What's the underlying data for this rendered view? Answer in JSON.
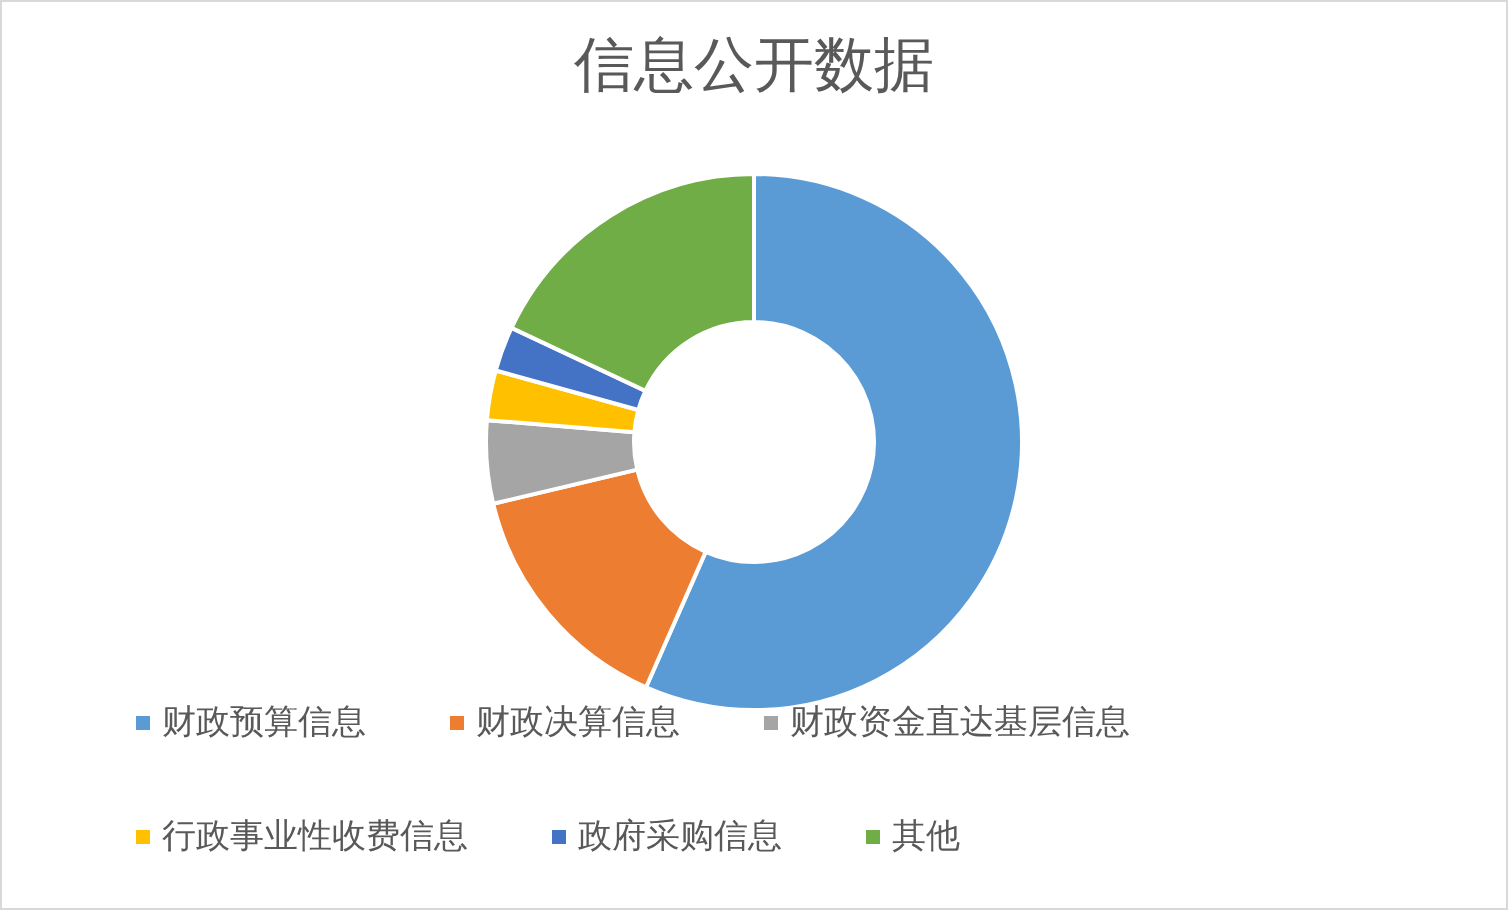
{
  "chart_data": {
    "type": "donut",
    "title": "信息公开数据",
    "categories": [
      "财政预算信息",
      "财政决算信息",
      "财政资金直达基层信息",
      "行政事业性收费信息",
      "政府采购信息",
      "其他"
    ],
    "values": [
      56.6,
      14.7,
      5,
      3,
      2.7,
      18
    ],
    "colors": [
      "#5b9bd5",
      "#ed7d31",
      "#a5a5a5",
      "#ffc000",
      "#4472c4",
      "#70ad47"
    ],
    "legend": "bottom"
  }
}
